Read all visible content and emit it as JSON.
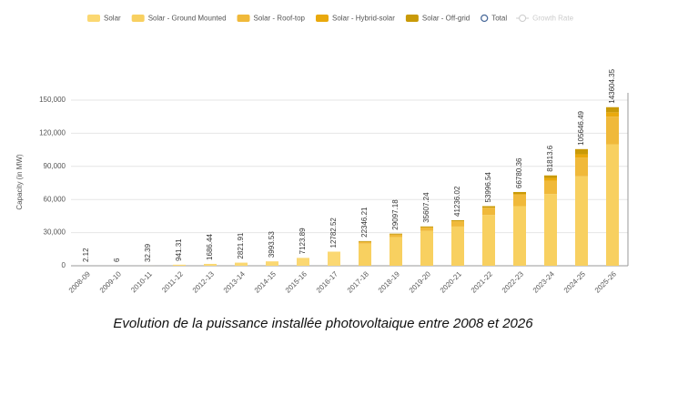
{
  "chart_data": {
    "type": "bar",
    "stacked": true,
    "caption": "Evolution de la puissance installée photovoltaique entre 2008 et 2026",
    "y_label": "Capacity (in MW)",
    "categories": [
      "2008-09",
      "2009-10",
      "2010-11",
      "2011-12",
      "2012-13",
      "2013-14",
      "2014-15",
      "2015-16",
      "2016-17",
      "2017-18",
      "2018-19",
      "2019-20",
      "2020-21",
      "2021-22",
      "2022-23",
      "2023-24",
      "2024-25",
      "2025-26"
    ],
    "series": [
      {
        "name": "Solar",
        "color": "#fbd872",
        "values": [
          2.12,
          6,
          32.39,
          941.31,
          1686.44,
          2821.91,
          3993.53,
          7123.89,
          12782.52,
          null,
          null,
          null,
          null,
          null,
          null,
          null,
          null,
          null
        ]
      },
      {
        "name": "Solar - Ground Mounted",
        "color": "#f8d060",
        "values": [
          null,
          null,
          null,
          null,
          null,
          null,
          null,
          null,
          null,
          20000,
          26000,
          31500,
          35500,
          46000,
          54000,
          65000,
          81000,
          110000
        ]
      },
      {
        "name": "Solar - Roof-top",
        "color": "#f0b93a",
        "values": [
          null,
          null,
          null,
          null,
          null,
          null,
          null,
          null,
          null,
          1600,
          2200,
          3200,
          4800,
          6600,
          10000,
          12000,
          17000,
          25000
        ]
      },
      {
        "name": "Solar - Hybrid-solar",
        "color": "#e9a90d",
        "values": [
          null,
          null,
          null,
          null,
          null,
          null,
          null,
          null,
          null,
          0,
          0,
          0,
          0,
          0,
          1000,
          2500,
          3000,
          4000
        ]
      },
      {
        "name": "Solar - Off-grid",
        "color": "#c99a08",
        "values": [
          null,
          null,
          null,
          null,
          null,
          null,
          null,
          null,
          null,
          746,
          897,
          907,
          936,
          1397,
          1780,
          2314,
          4646,
          4604
        ]
      }
    ],
    "total": {
      "name": "Total",
      "color": "#4a6a9a",
      "values": [
        2.12,
        6,
        32.39,
        941.31,
        1686.44,
        2821.91,
        3993.53,
        7123.89,
        12782.52,
        22346.21,
        29097.18,
        35607.24,
        41236.02,
        53996.54,
        66780.36,
        81813.6,
        105646.49,
        143604.35
      ]
    },
    "hidden_legend": {
      "name": "Growth Rate",
      "color": "#cccccc"
    },
    "ylim": [
      0,
      150000
    ],
    "yticks": [
      0,
      {
        "value": 30000,
        "label": "30,000"
      },
      {
        "value": 60000,
        "label": "60,000"
      },
      {
        "value": 90000,
        "label": "90,000"
      },
      {
        "value": 120000,
        "label": "120,000"
      },
      {
        "value": 150000,
        "label": "150,000"
      }
    ],
    "grid": true
  }
}
